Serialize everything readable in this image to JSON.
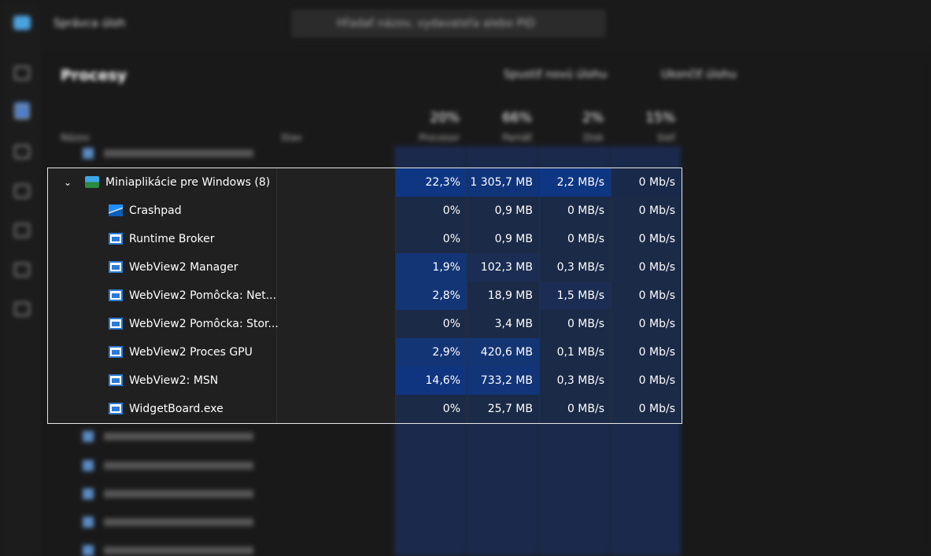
{
  "app": {
    "title": "Správca úloh",
    "search": "Hľadať názov, vydavateľa alebo PID",
    "page": "Procesy",
    "actions": [
      "Spustiť novú úlohu",
      "Ukončiť úlohu"
    ],
    "columns": [
      {
        "name": "Názov"
      },
      {
        "name": "Stav"
      },
      {
        "percent": "20%",
        "name": "Procesor"
      },
      {
        "percent": "66%",
        "name": "Pamäť"
      },
      {
        "percent": "2%",
        "name": "Disk"
      },
      {
        "percent": "15%",
        "name": "Sieť"
      }
    ]
  },
  "group": {
    "name": "Miniaplikácie pre Windows (8)",
    "cells": [
      "22,3%",
      "1 305,7 MB",
      "2,2 MB/s",
      "0 Mb/s"
    ],
    "shades": [
      "#0e3683",
      "#10347a",
      "#0e3683",
      "#18294a"
    ]
  },
  "processes": [
    {
      "name": "Crashpad",
      "cells": [
        "0%",
        "0,9 MB",
        "0 MB/s",
        "0 Mb/s"
      ],
      "shades": [
        "#1b2a47",
        "#1b2a47",
        "#1b2a47",
        "#1b2a47"
      ]
    },
    {
      "name": "Runtime Broker",
      "cells": [
        "0%",
        "0,9 MB",
        "0 MB/s",
        "0 Mb/s"
      ],
      "shades": [
        "#1b2a47",
        "#1b2a47",
        "#1b2a47",
        "#1b2a47"
      ]
    },
    {
      "name": "WebView2 Manager",
      "cells": [
        "1,9%",
        "102,3 MB",
        "0,3 MB/s",
        "0 Mb/s"
      ],
      "shades": [
        "#133576",
        "#1b2d52",
        "#1b2a47",
        "#1b2a47"
      ]
    },
    {
      "name": "WebView2 Pomôcka: Net...",
      "cells": [
        "2,8%",
        "18,9 MB",
        "1,5 MB/s",
        "0 Mb/s"
      ],
      "shades": [
        "#133576",
        "#1b2a47",
        "#1b2d52",
        "#1b2a47"
      ]
    },
    {
      "name": "WebView2 Pomôcka: Stor...",
      "cells": [
        "0%",
        "3,4 MB",
        "0 MB/s",
        "0 Mb/s"
      ],
      "shades": [
        "#1b2a47",
        "#1b2a47",
        "#1b2a47",
        "#1b2a47"
      ]
    },
    {
      "name": "WebView2 Proces GPU",
      "cells": [
        "2,9%",
        "420,6 MB",
        "0,1 MB/s",
        "0 Mb/s"
      ],
      "shades": [
        "#133576",
        "#143574",
        "#1b2a47",
        "#1b2a47"
      ]
    },
    {
      "name": "WebView2: MSN",
      "cells": [
        "14,6%",
        "733,2 MB",
        "0,3 MB/s",
        "0 Mb/s"
      ],
      "shades": [
        "#0f3580",
        "#123479",
        "#1b2a47",
        "#1b2a47"
      ]
    },
    {
      "name": "WidgetBoard.exe",
      "cells": [
        "0%",
        "25,7 MB",
        "0 MB/s",
        "0 Mb/s"
      ],
      "shades": [
        "#1b2a47",
        "#1b2a47",
        "#1b2a47",
        "#1b2a47"
      ]
    }
  ]
}
